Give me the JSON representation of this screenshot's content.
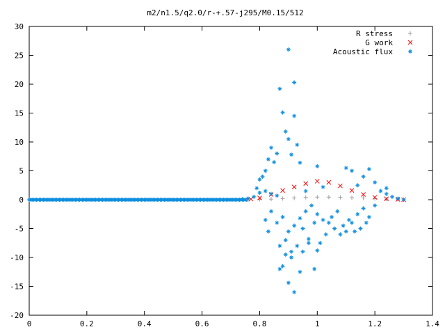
{
  "chart_data": {
    "type": "scatter",
    "title": "m2/n1.5/q2.0/r-+.57-j295/M0.15/512",
    "xlim": [
      0,
      1.4
    ],
    "ylim": [
      -20,
      30
    ],
    "x_ticks": [
      "0",
      "0.2",
      "0.4",
      "0.6",
      "0.8",
      "1",
      "1.2",
      "1.4"
    ],
    "y_ticks": [
      "-20",
      "-15",
      "-10",
      "-5",
      "0",
      "5",
      "10",
      "15",
      "20",
      "25",
      "30"
    ],
    "grid": false,
    "legend_position": "top-right",
    "colors": {
      "r_stress": "#a0a0a0",
      "g_work": "#ff0000",
      "acoustic_flux": "#0f8fdf"
    },
    "series": [
      {
        "name": "R stress",
        "marker": "plus",
        "points": [
          [
            0.76,
            0.0
          ],
          [
            0.8,
            0.05
          ],
          [
            0.84,
            0.1
          ],
          [
            0.88,
            0.2
          ],
          [
            0.92,
            0.3
          ],
          [
            0.96,
            0.4
          ],
          [
            1.0,
            0.45
          ],
          [
            1.04,
            0.45
          ],
          [
            1.08,
            0.4
          ],
          [
            1.12,
            0.35
          ],
          [
            1.16,
            0.3
          ],
          [
            1.2,
            0.2
          ],
          [
            1.24,
            0.1
          ],
          [
            1.28,
            0.05
          ],
          [
            1.3,
            0.0
          ]
        ]
      },
      {
        "name": "G work",
        "marker": "cross",
        "points": [
          [
            0.77,
            0.1
          ],
          [
            0.8,
            0.3
          ],
          [
            0.84,
            0.9
          ],
          [
            0.88,
            1.6
          ],
          [
            0.92,
            2.2
          ],
          [
            0.96,
            2.8
          ],
          [
            1.0,
            3.2
          ],
          [
            1.04,
            3.0
          ],
          [
            1.08,
            2.4
          ],
          [
            1.12,
            1.6
          ],
          [
            1.16,
            0.9
          ],
          [
            1.2,
            0.4
          ],
          [
            1.24,
            0.15
          ],
          [
            1.28,
            0.05
          ],
          [
            1.3,
            0.0
          ]
        ]
      },
      {
        "name": "Acoustic flux",
        "marker": "star",
        "points": [
          [
            0.9,
            26.0
          ],
          [
            0.92,
            20.3
          ],
          [
            0.87,
            19.2
          ],
          [
            0.88,
            15.1
          ],
          [
            0.92,
            14.5
          ],
          [
            0.89,
            11.8
          ],
          [
            0.9,
            10.5
          ],
          [
            0.93,
            9.5
          ],
          [
            0.84,
            9.0
          ],
          [
            0.86,
            8.0
          ],
          [
            0.83,
            7.0
          ],
          [
            0.91,
            7.8
          ],
          [
            0.94,
            6.4
          ],
          [
            0.85,
            6.5
          ],
          [
            0.82,
            5.0
          ],
          [
            0.81,
            4.0
          ],
          [
            0.8,
            3.5
          ],
          [
            0.79,
            2.0
          ],
          [
            1.0,
            5.8
          ],
          [
            1.1,
            5.5
          ],
          [
            1.12,
            5.0
          ],
          [
            1.18,
            5.3
          ],
          [
            1.16,
            4.0
          ],
          [
            1.2,
            3.0
          ],
          [
            1.24,
            2.0
          ],
          [
            1.14,
            2.5
          ],
          [
            1.02,
            2.2
          ],
          [
            0.96,
            1.5
          ],
          [
            0.98,
            -1.0
          ],
          [
            1.0,
            -2.5
          ],
          [
            1.02,
            -3.5
          ],
          [
            1.04,
            -4.0
          ],
          [
            1.06,
            -5.0
          ],
          [
            1.08,
            -6.0
          ],
          [
            1.1,
            -5.5
          ],
          [
            1.12,
            -4.0
          ],
          [
            1.14,
            -2.5
          ],
          [
            1.16,
            -1.5
          ],
          [
            1.18,
            -3.0
          ],
          [
            1.2,
            -1.0
          ],
          [
            0.95,
            -5.0
          ],
          [
            0.97,
            -6.8
          ],
          [
            0.99,
            -4.0
          ],
          [
            1.0,
            -8.8
          ],
          [
            0.93,
            -8.0
          ],
          [
            0.95,
            -9.0
          ],
          [
            0.97,
            -7.5
          ],
          [
            0.91,
            -9.0
          ],
          [
            0.89,
            -7.0
          ],
          [
            0.87,
            -8.0
          ],
          [
            0.88,
            -11.5
          ],
          [
            0.9,
            -14.4
          ],
          [
            0.92,
            -16.0
          ],
          [
            0.94,
            -12.5
          ],
          [
            0.99,
            -12.0
          ],
          [
            0.87,
            -12.0
          ],
          [
            0.82,
            -3.5
          ],
          [
            0.83,
            -5.5
          ],
          [
            0.86,
            -4.0
          ],
          [
            0.84,
            -2.0
          ],
          [
            0.88,
            -3.0
          ],
          [
            0.9,
            -5.5
          ],
          [
            0.92,
            -4.5
          ],
          [
            0.94,
            -3.2
          ],
          [
            0.89,
            -9.5
          ],
          [
            0.91,
            -10.0
          ],
          [
            1.05,
            -3.0
          ],
          [
            1.07,
            -2.0
          ],
          [
            1.09,
            -4.5
          ],
          [
            1.11,
            -3.5
          ],
          [
            1.13,
            -5.5
          ],
          [
            1.15,
            -5.0
          ],
          [
            1.17,
            -4.0
          ],
          [
            1.03,
            -6.0
          ],
          [
            1.01,
            -7.5
          ],
          [
            0.96,
            -2.0
          ],
          [
            1.22,
            1.5
          ],
          [
            1.24,
            1.0
          ],
          [
            1.26,
            0.5
          ],
          [
            1.28,
            0.2
          ],
          [
            1.3,
            0.0
          ],
          [
            0.8,
            1.2
          ],
          [
            0.82,
            1.5
          ],
          [
            0.84,
            1.0
          ],
          [
            0.86,
            0.7
          ],
          [
            0.78,
            0.5
          ],
          [
            0.76,
            0.2
          ],
          [
            0.74,
            0.1
          ]
        ]
      }
    ]
  }
}
